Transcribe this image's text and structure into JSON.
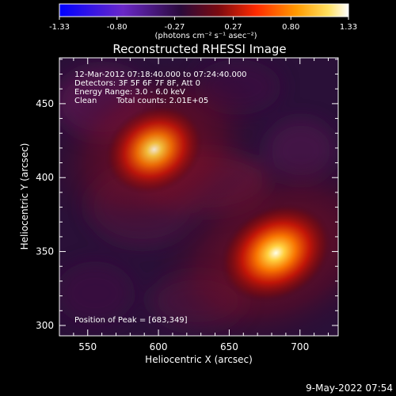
{
  "chart_data": {
    "type": "heatmap",
    "title": "Reconstructed RHESSI Image",
    "xlabel": "Heliocentric X (arcsec)",
    "ylabel": "Heliocentric Y (arcsec)",
    "xlim": [
      530,
      727
    ],
    "ylim": [
      293,
      481
    ],
    "x_ticks": [
      550,
      600,
      650,
      700
    ],
    "y_ticks": [
      300,
      350,
      400,
      450
    ],
    "colorbar": {
      "min": -1.33,
      "max": 1.33,
      "ticks": [
        "-1.33",
        "-0.80",
        "-0.27",
        "0.27",
        "0.80",
        "1.33"
      ],
      "units": "(photons cm⁻² s⁻¹ asec⁻²)",
      "colors": [
        "#0000ff",
        "#5a1ca0",
        "#2a0a3a",
        "#ff2a00",
        "#ffa000",
        "#ffffff"
      ]
    },
    "sources": [
      {
        "x": 597,
        "y": 419,
        "peak": 1.05,
        "sigma_x": 14,
        "sigma_y": 11
      },
      {
        "x": 683,
        "y": 349,
        "peak": 1.33,
        "sigma_x": 16,
        "sigma_y": 12
      }
    ],
    "annotations": {
      "time_range": "12-Mar-2012 07:18:40.000 to 07:24:40.000",
      "detectors": "Detectors: 3F 5F 6F 7F 8F, Att 0",
      "energy": "Energy Range: 3.0 - 6.0 keV",
      "method": "Clean",
      "counts": "Total counts: 2.01E+05",
      "peak_position": "Position of Peak = [683,349]"
    }
  },
  "footer_date": "9-May-2022 07:54"
}
